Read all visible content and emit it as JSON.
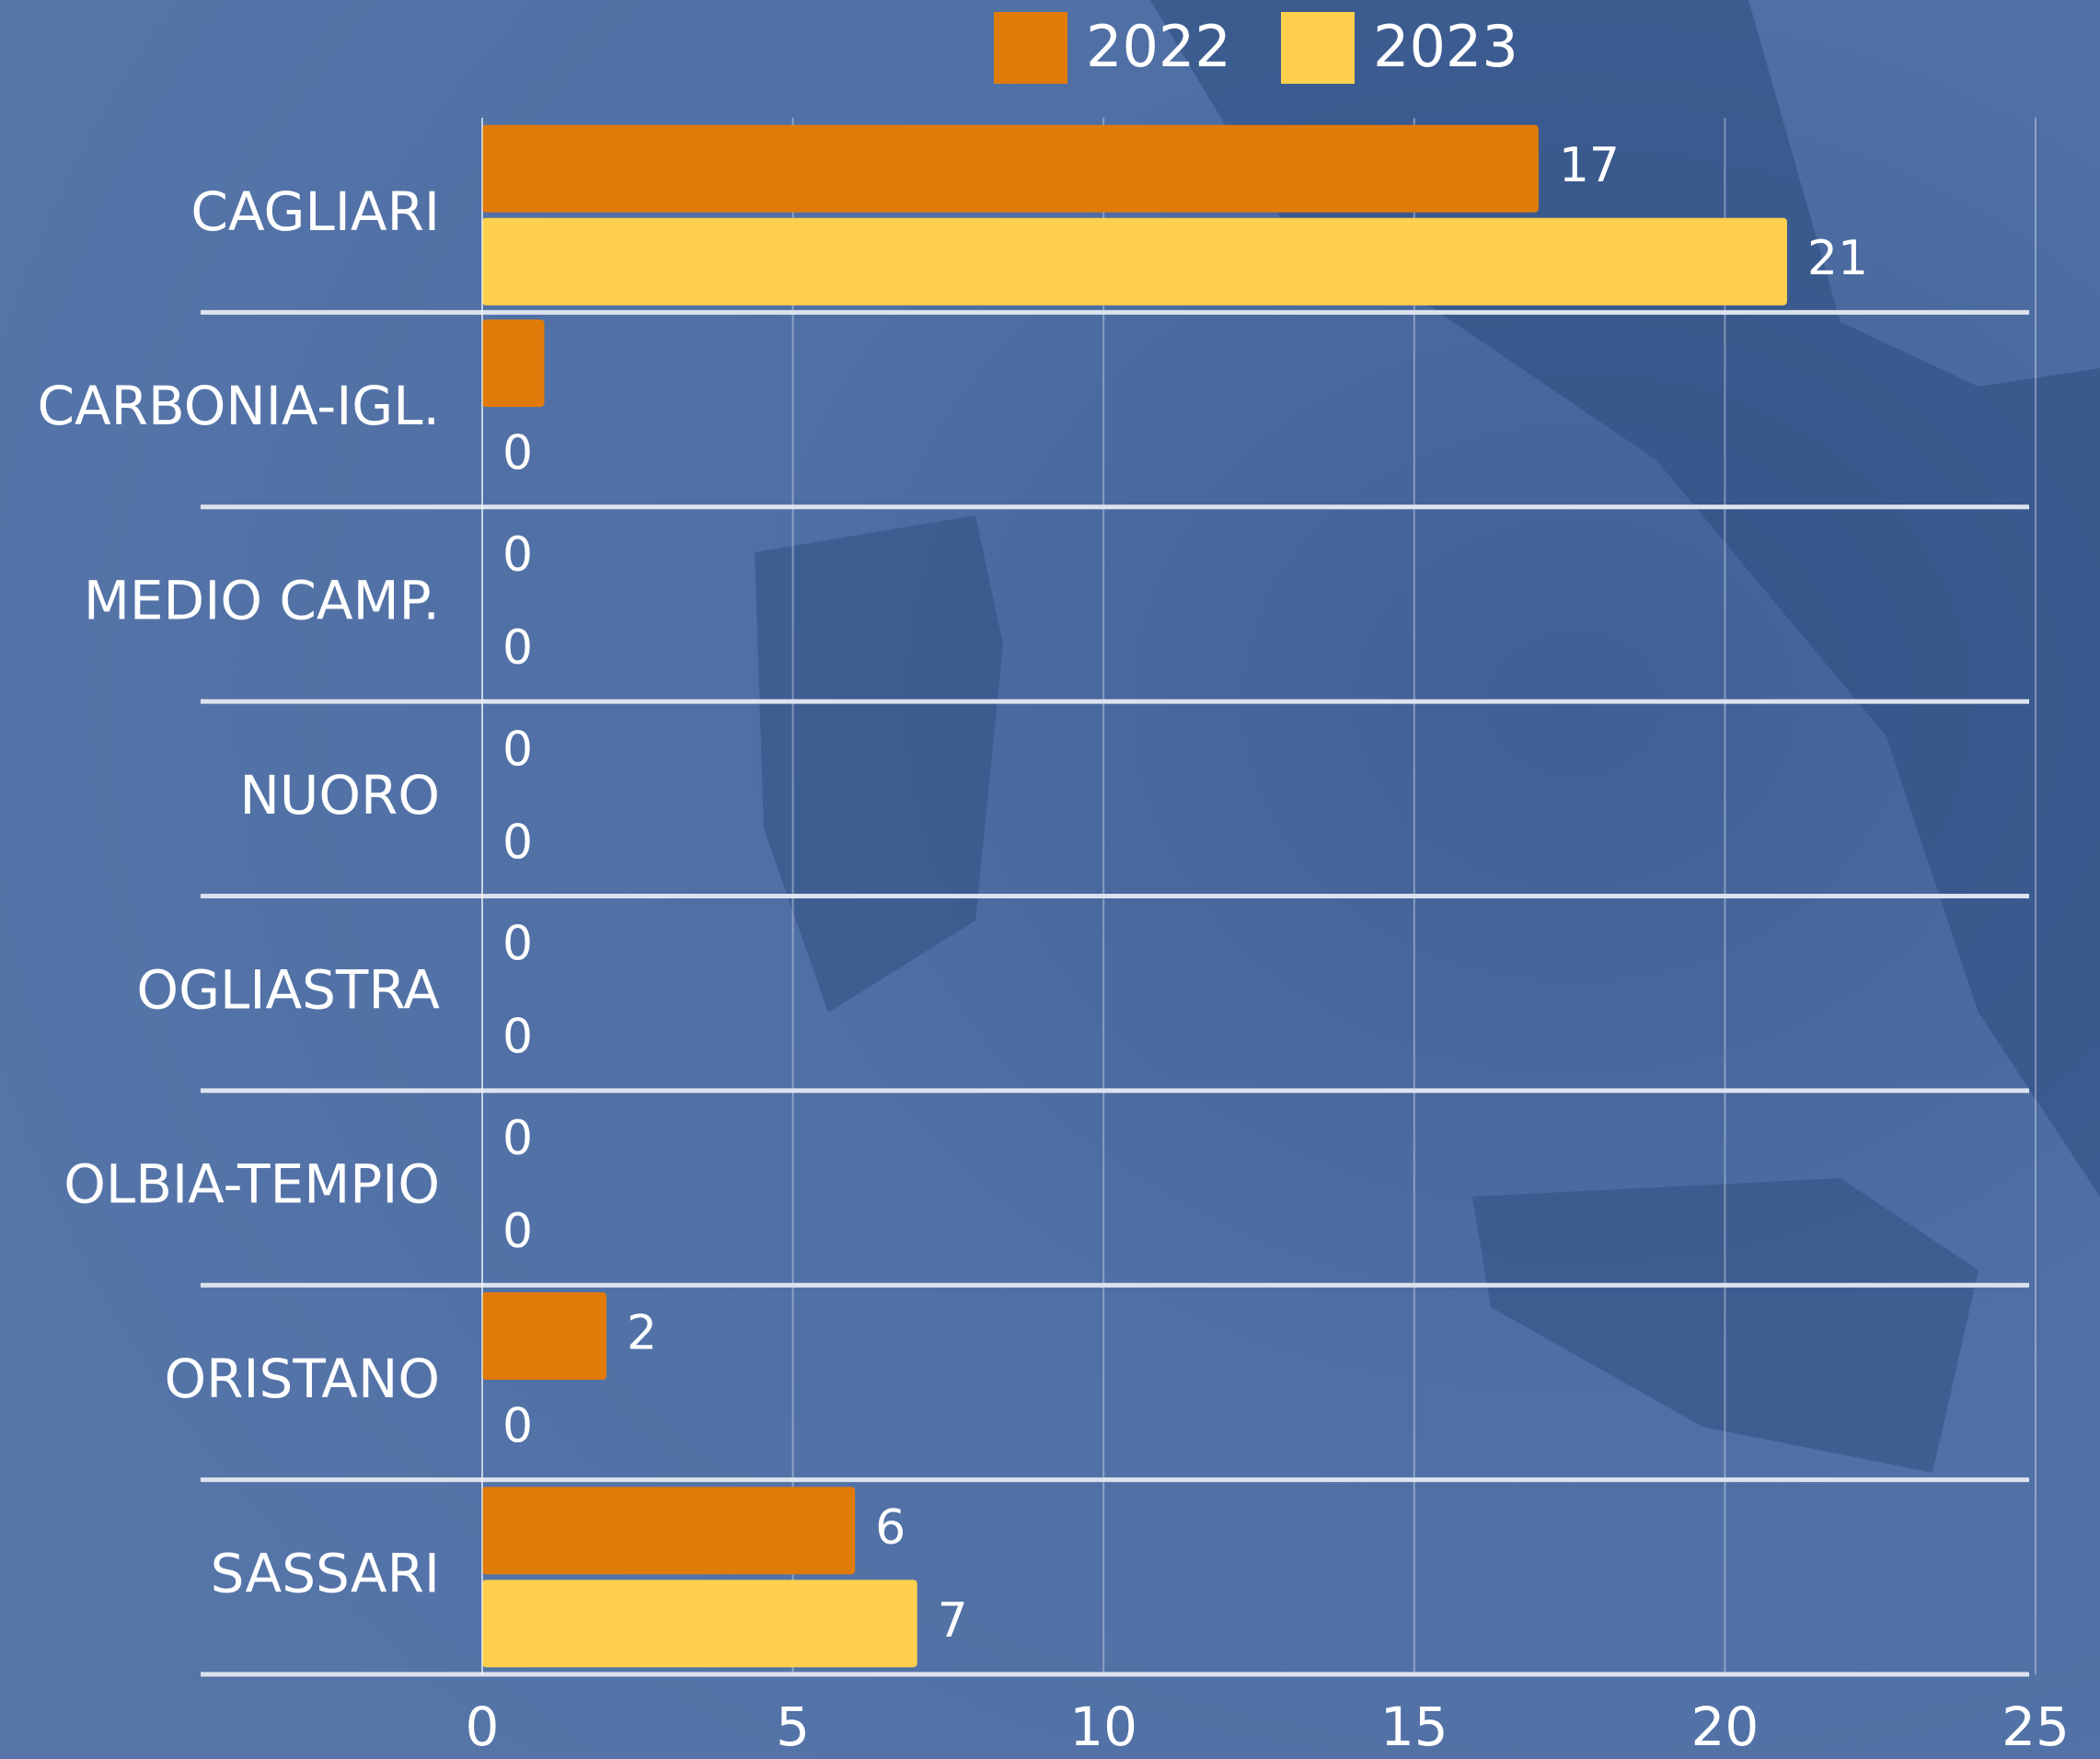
{
  "chart_data": {
    "type": "hbar",
    "categories": [
      "CAGLIARI",
      "CARBONIA-IGL.",
      "MEDIO CAMP.",
      "NUORO",
      "OGLIASTRA",
      "OLBIA-TEMPIO",
      "ORISTANO",
      "SASSARI"
    ],
    "series": [
      {
        "name": "2022",
        "color": "#e07b0a",
        "values": [
          17,
          1,
          0,
          0,
          0,
          0,
          2,
          6
        ],
        "value_labels": [
          "17",
          null,
          "0",
          "0",
          "0",
          "0",
          "2",
          "6"
        ]
      },
      {
        "name": "2023",
        "color": "#ffd04d",
        "values": [
          21,
          0,
          0,
          0,
          0,
          0,
          0,
          7
        ]
      }
    ],
    "xlim": [
      0,
      25
    ],
    "xticks": [
      0,
      5,
      10,
      15,
      20,
      25
    ],
    "grid": true,
    "legend": "top"
  }
}
